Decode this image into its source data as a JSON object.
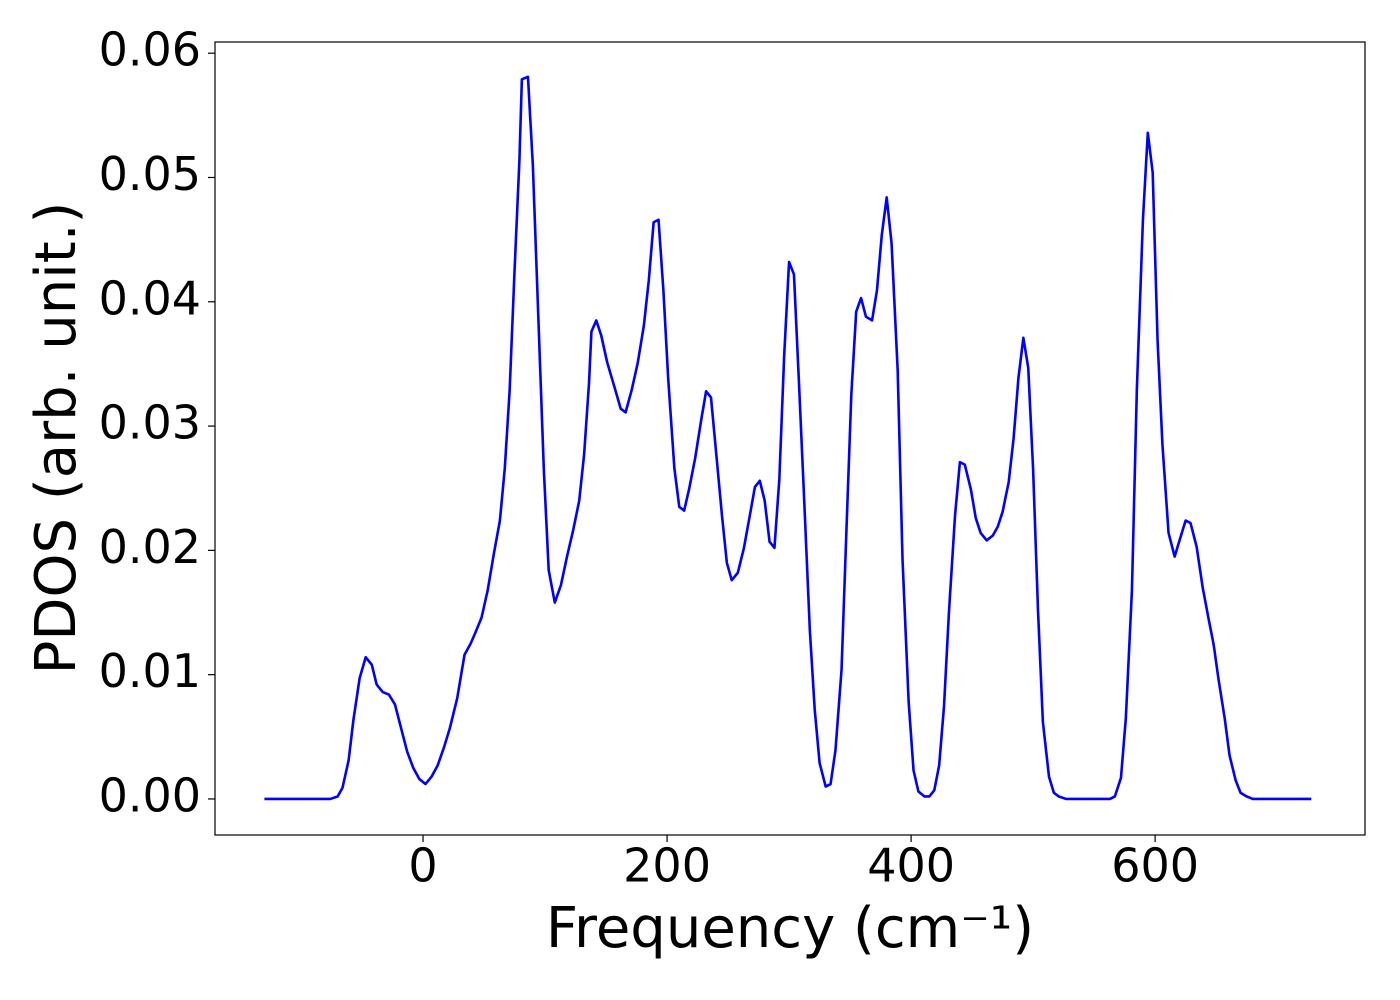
{
  "chart_data": {
    "type": "line",
    "x_label": "Frequency (cm⁻¹)",
    "y_label": "PDOS (arb. unit.)",
    "color": "#0000ff",
    "xlim": [
      -170.5,
      772
    ],
    "ylim": [
      -0.0029,
      0.0609
    ],
    "xticks": [
      0,
      200,
      400,
      600
    ],
    "yticks": [
      {
        "value": 0,
        "label": "0.00"
      },
      0.01,
      0.02,
      0.03,
      0.04,
      0.05,
      0.06
    ],
    "x": [
      -130,
      -76,
      -70,
      -66,
      -61,
      -57,
      -52,
      -47,
      -42,
      -38,
      -33,
      -28,
      -23,
      -18,
      -13,
      -8,
      -3,
      2,
      7,
      12,
      17,
      22,
      28,
      34,
      39,
      43,
      48,
      53,
      58,
      63,
      67,
      71,
      75,
      79,
      81,
      86,
      90,
      94,
      99,
      103,
      108,
      113,
      118,
      123,
      128,
      132,
      136,
      138,
      142,
      146,
      151,
      157,
      162,
      166,
      171,
      176,
      181,
      185,
      189,
      193,
      197,
      201,
      206,
      210,
      214,
      218,
      223,
      228,
      232,
      236,
      240,
      245,
      249,
      253,
      258,
      263,
      268,
      272,
      276,
      280,
      284,
      288,
      292,
      296,
      300,
      304,
      308,
      312,
      317,
      321,
      325,
      330,
      334,
      338,
      343,
      347,
      351,
      355,
      359,
      363,
      368,
      372,
      376,
      380,
      384,
      389,
      393,
      398,
      402,
      406,
      411,
      415,
      419,
      423,
      427,
      431,
      436,
      440,
      444,
      449,
      453,
      457,
      462,
      467,
      471,
      475,
      480,
      484,
      488,
      492,
      496,
      500,
      504,
      508,
      513,
      517,
      521,
      527,
      563,
      567,
      572,
      576,
      581,
      585,
      590,
      594,
      598,
      602,
      606,
      611,
      616,
      620,
      625,
      629,
      634,
      639,
      644,
      648,
      652,
      657,
      661,
      666,
      670,
      675,
      680,
      728
    ],
    "values": [
      0,
      0,
      0.0002,
      0.0009,
      0.0031,
      0.0064,
      0.0097,
      0.0114,
      0.0108,
      0.0092,
      0.0086,
      0.0084,
      0.0076,
      0.0057,
      0.0038,
      0.0025,
      0.0016,
      0.0012,
      0.0018,
      0.0027,
      0.0041,
      0.0057,
      0.0081,
      0.0116,
      0.0125,
      0.0134,
      0.0146,
      0.0168,
      0.0197,
      0.0224,
      0.0266,
      0.0329,
      0.0425,
      0.0514,
      0.0579,
      0.0581,
      0.051,
      0.0401,
      0.0265,
      0.0184,
      0.0158,
      0.0172,
      0.0195,
      0.0216,
      0.024,
      0.0277,
      0.0334,
      0.0376,
      0.0385,
      0.0373,
      0.0351,
      0.0331,
      0.0314,
      0.0311,
      0.0329,
      0.0351,
      0.0381,
      0.0417,
      0.0464,
      0.0466,
      0.0409,
      0.0337,
      0.0266,
      0.0235,
      0.0232,
      0.0249,
      0.0274,
      0.0305,
      0.0328,
      0.0323,
      0.0281,
      0.0228,
      0.019,
      0.0176,
      0.0182,
      0.0202,
      0.0229,
      0.0251,
      0.0256,
      0.024,
      0.0207,
      0.0202,
      0.0257,
      0.0357,
      0.0432,
      0.0422,
      0.0337,
      0.0249,
      0.0136,
      0.0072,
      0.0029,
      0.001,
      0.0012,
      0.0039,
      0.0104,
      0.0216,
      0.0325,
      0.0392,
      0.0403,
      0.0388,
      0.0385,
      0.0409,
      0.0454,
      0.0484,
      0.0447,
      0.0345,
      0.0192,
      0.0078,
      0.0023,
      0.0006,
      0.0002,
      0.0002,
      0.0007,
      0.0027,
      0.0075,
      0.015,
      0.0228,
      0.0271,
      0.0269,
      0.0249,
      0.0226,
      0.0214,
      0.0208,
      0.0212,
      0.0219,
      0.0231,
      0.0255,
      0.029,
      0.0339,
      0.0371,
      0.0347,
      0.0265,
      0.0152,
      0.0062,
      0.0018,
      0.0005,
      0.0002,
      0,
      0,
      0.0002,
      0.0017,
      0.0065,
      0.0168,
      0.0329,
      0.0466,
      0.0536,
      0.0504,
      0.0369,
      0.0285,
      0.0214,
      0.0195,
      0.0208,
      0.0224,
      0.0222,
      0.0203,
      0.017,
      0.0144,
      0.0124,
      0.0096,
      0.0065,
      0.0035,
      0.0015,
      0.0005,
      0.0002,
      0,
      0
    ]
  }
}
